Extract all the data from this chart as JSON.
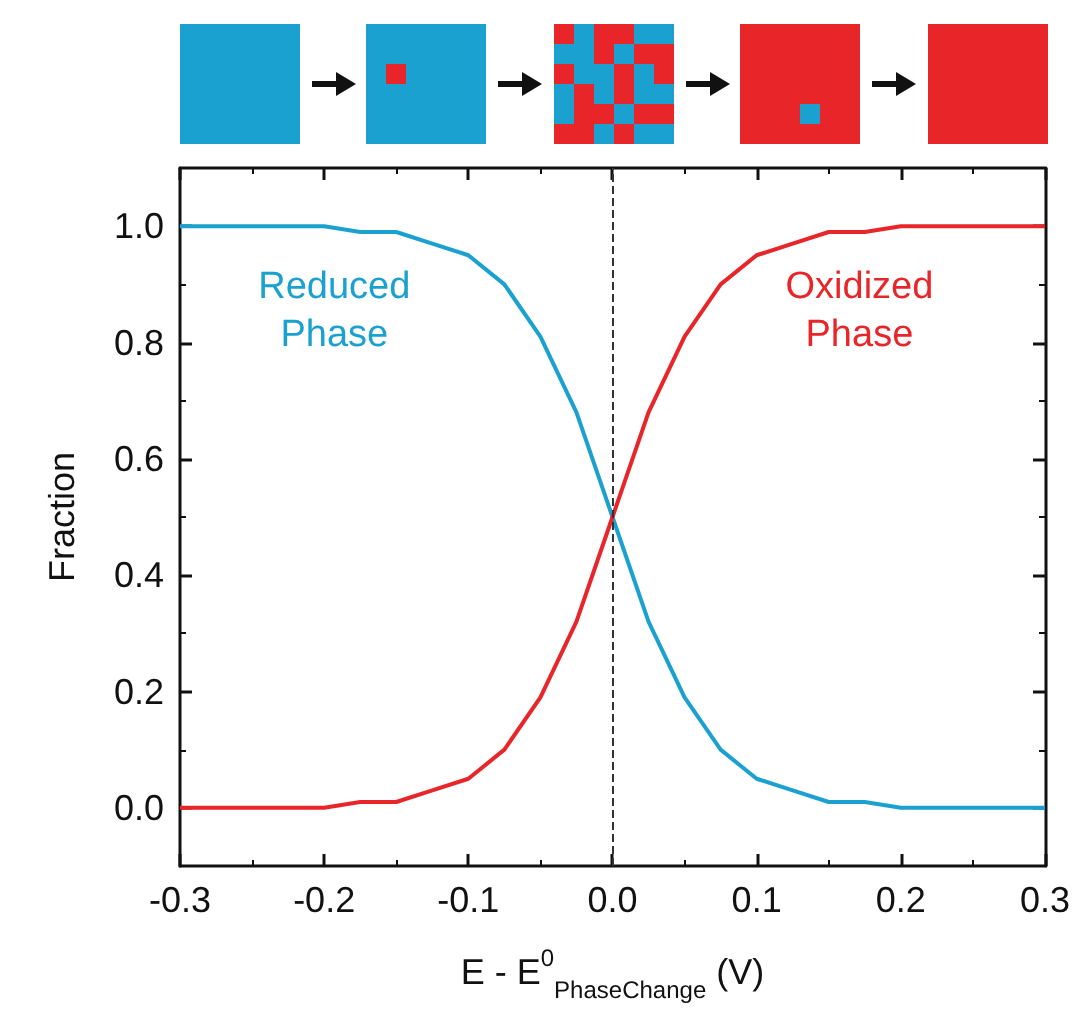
{
  "chart_data": {
    "type": "line",
    "xlabel": "E - E$^{0}$$_{PhaseChange}$ (V)",
    "ylabel": "Fraction",
    "x": [
      -0.3,
      -0.275,
      -0.25,
      -0.225,
      -0.2,
      -0.175,
      -0.15,
      -0.125,
      -0.1,
      -0.075,
      -0.05,
      -0.025,
      0,
      0.025,
      0.05,
      0.075,
      0.1,
      0.125,
      0.15,
      0.175,
      0.2,
      0.225,
      0.25,
      0.275,
      0.3
    ],
    "series": [
      {
        "name": "Reduced Phase",
        "color": "#1ba1d0",
        "values": [
          1,
          1,
          1,
          1,
          1,
          0.99,
          0.99,
          0.97,
          0.95,
          0.9,
          0.81,
          0.68,
          0.5,
          0.32,
          0.19,
          0.1,
          0.05,
          0.03,
          0.01,
          0.01,
          0,
          0,
          0,
          0,
          0
        ]
      },
      {
        "name": "Oxidized Phase",
        "color": "#e8262a",
        "values": [
          0,
          0,
          0,
          0,
          0,
          0.01,
          0.01,
          0.03,
          0.05,
          0.1,
          0.19,
          0.32,
          0.5,
          0.68,
          0.81,
          0.9,
          0.95,
          0.97,
          0.99,
          0.99,
          1,
          1,
          1,
          1,
          1
        ]
      }
    ],
    "xlim": [
      -0.3,
      0.3
    ],
    "xticks": [
      -0.3,
      -0.2,
      -0.1,
      {
        "value": 0,
        "label": "0.0"
      },
      0.1,
      0.2,
      0.3
    ],
    "ylim": [
      -0.1,
      1.1
    ],
    "yticks": [
      {
        "value": 0,
        "label": "0.0"
      },
      0.2,
      0.4,
      0.6,
      0.8,
      {
        "value": 1,
        "label": "1.0"
      }
    ],
    "ref_lines": [
      {
        "axis": "x",
        "value": 0,
        "label": null,
        "color": "#333333",
        "line_style": "dashed"
      }
    ],
    "grid": false,
    "legend": false,
    "marker": "none",
    "line_style": "solid"
  }
}
